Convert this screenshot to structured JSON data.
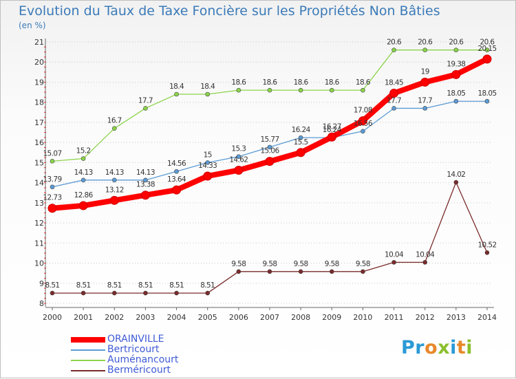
{
  "header": {
    "title": "Evolution du Taux de Taxe Foncière sur les Propriétés Non Bâties",
    "unit": "(en %)"
  },
  "brand": {
    "text": "Proxiti"
  },
  "chart_data": {
    "type": "line",
    "title": "Evolution du Taux de Taxe Foncière sur les Propriétés Non Bâties",
    "ylabel": "(en %)",
    "xlabel": "",
    "x": [
      "2000",
      "2001",
      "2002",
      "2003",
      "2004",
      "2005",
      "2006",
      "2007",
      "2008",
      "2009",
      "2010",
      "2011",
      "2012",
      "2013",
      "2014"
    ],
    "ylim": [
      8,
      21
    ],
    "yticks": [
      "8",
      "9",
      "10",
      "11",
      "12",
      "13",
      "14",
      "15",
      "16",
      "17",
      "18",
      "19",
      "20",
      "21"
    ],
    "grid": "horizontal dotted",
    "legend_position": "bottom-left",
    "series": [
      {
        "name": "ORAINVILLE",
        "color": "#ff0000",
        "values": [
          12.73,
          12.86,
          13.12,
          13.38,
          13.64,
          14.33,
          14.62,
          15.06,
          15.5,
          16.27,
          17.08,
          18.45,
          19,
          19.38,
          20.15
        ],
        "labels": [
          "12.73",
          "12.86",
          "13.12",
          "13.38",
          "13.64",
          "14.33",
          "14.62",
          "15.06",
          "15.5",
          "16.27",
          "17.08",
          "18.45",
          "19",
          "19.38",
          "20.15"
        ]
      },
      {
        "name": "Bertricourt",
        "color": "#5b9bd5",
        "values": [
          13.79,
          14.13,
          14.13,
          14.13,
          14.56,
          15,
          15.3,
          15.77,
          16.24,
          16.24,
          16.56,
          17.7,
          17.7,
          18.05,
          18.05
        ],
        "labels": [
          "13.79",
          "14.13",
          "14.13",
          "14.13",
          "14.56",
          "15",
          "15.3",
          "15.77",
          "16.24",
          "16.24",
          "16.56",
          "17.7",
          "17.7",
          "18.05",
          "18.05"
        ]
      },
      {
        "name": "Auménancourt",
        "color": "#8bd44a",
        "values": [
          15.07,
          15.2,
          16.7,
          17.7,
          18.4,
          18.4,
          18.6,
          18.6,
          18.6,
          18.6,
          18.6,
          20.6,
          20.6,
          20.6,
          20.6
        ],
        "labels": [
          "15.07",
          "15.2",
          "16.7",
          "17.7",
          "18.4",
          "18.4",
          "18.6",
          "18.6",
          "18.6",
          "18.6",
          "18.6",
          "20.6",
          "20.6",
          "20.6",
          "20.6"
        ]
      },
      {
        "name": "Berméricourt",
        "color": "#7a2a2a",
        "values": [
          8.51,
          8.51,
          8.51,
          8.51,
          8.51,
          8.51,
          9.58,
          9.58,
          9.58,
          9.58,
          9.58,
          10.04,
          10.04,
          14.02,
          10.52
        ],
        "labels": [
          "8.51",
          "8.51",
          "8.51",
          "8.51",
          "8.51",
          "8.51",
          "9.58",
          "9.58",
          "9.58",
          "9.58",
          "9.58",
          "10.04",
          "10.04",
          "14.02",
          "10.52"
        ]
      }
    ]
  }
}
